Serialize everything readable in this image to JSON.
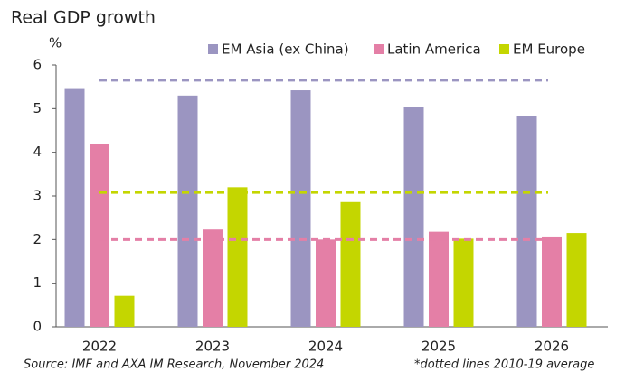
{
  "chart_data": {
    "type": "bar",
    "title": "Real GDP growth",
    "y_label": "%",
    "categories": [
      "2022",
      "2023",
      "2024",
      "2025",
      "2026"
    ],
    "series": [
      {
        "name": "EM Asia (ex China)",
        "color": "#9b95c1",
        "values": [
          5.45,
          5.3,
          5.42,
          5.04,
          4.83
        ],
        "average": 5.65
      },
      {
        "name": "Latin America",
        "color": "#e47fa6",
        "values": [
          4.18,
          2.23,
          2.0,
          2.18,
          2.07
        ],
        "average": 2.0
      },
      {
        "name": "EM Europe",
        "color": "#c4d600",
        "values": [
          0.71,
          3.2,
          2.86,
          2.02,
          2.15
        ],
        "average": 3.08
      }
    ],
    "ylim": [
      0,
      6
    ],
    "yticks": [
      0,
      1,
      2,
      3,
      4,
      5,
      6
    ],
    "grid": false,
    "legend": "top",
    "source": "Source: IMF and AXA IM Research, November 2024",
    "annotation": "*dotted lines 2010-19 average"
  }
}
